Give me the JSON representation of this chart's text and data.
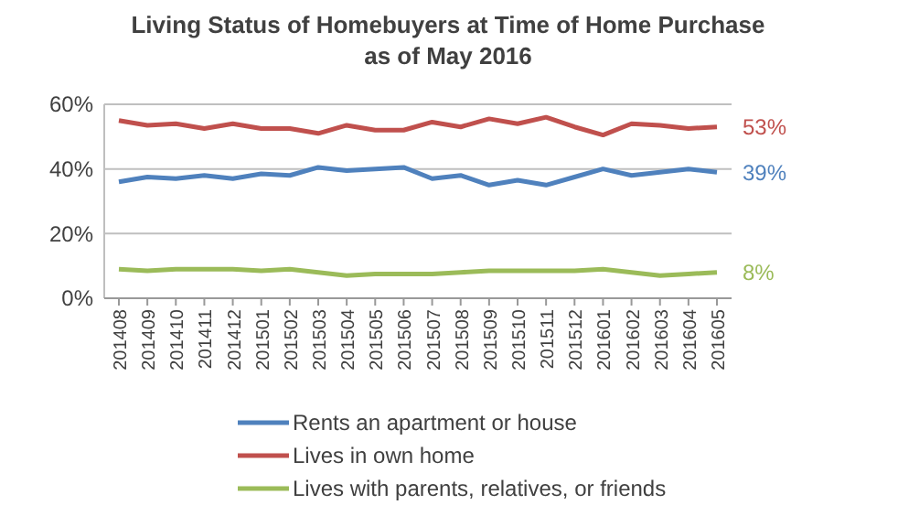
{
  "chart_data": {
    "type": "line",
    "title": "Living Status of Homebuyers at Time of Home Purchase\nas of May 2016",
    "categories": [
      "201408",
      "201409",
      "201410",
      "201411",
      "201412",
      "201501",
      "201502",
      "201503",
      "201504",
      "201505",
      "201506",
      "201507",
      "201508",
      "201509",
      "201510",
      "201511",
      "201512",
      "201601",
      "201602",
      "201603",
      "201604",
      "201605"
    ],
    "series": [
      {
        "name": "Rents an apartment or house",
        "color": "#4f81bd",
        "values": [
          36,
          37.5,
          37,
          38,
          37,
          38.5,
          38,
          40.5,
          39.5,
          40,
          40.5,
          37,
          38,
          35,
          36.5,
          35,
          37.5,
          40,
          38,
          39,
          40,
          39
        ]
      },
      {
        "name": "Lives in own home",
        "color": "#c0504d",
        "values": [
          55,
          53.5,
          54,
          52.5,
          54,
          52.5,
          52.5,
          51,
          53.5,
          52,
          52,
          54.5,
          53,
          55.5,
          54,
          56,
          53,
          50.5,
          54,
          53.5,
          52.5,
          53
        ]
      },
      {
        "name": "Lives with parents, relatives, or friends",
        "color": "#9bbb59",
        "values": [
          9,
          8.5,
          9,
          9,
          9,
          8.5,
          9,
          8,
          7,
          7.5,
          7.5,
          7.5,
          8,
          8.5,
          8.5,
          8.5,
          8.5,
          9,
          8,
          7,
          7.5,
          8
        ]
      }
    ],
    "ylim": [
      0,
      60
    ],
    "yticks": [
      {
        "value": 0,
        "label": "0%"
      },
      {
        "value": 20,
        "label": "20%"
      },
      {
        "value": 40,
        "label": "40%"
      },
      {
        "value": 60,
        "label": "60%"
      }
    ],
    "grid": "y",
    "legend": "bottom",
    "marker": "none",
    "line_style": "solid",
    "annotations": [
      {
        "text": "39%",
        "x": "201605",
        "y": 39
      },
      {
        "text": "53%",
        "x": "201605",
        "y": 53
      },
      {
        "text": "8%",
        "x": "201605",
        "y": 8
      }
    ]
  }
}
